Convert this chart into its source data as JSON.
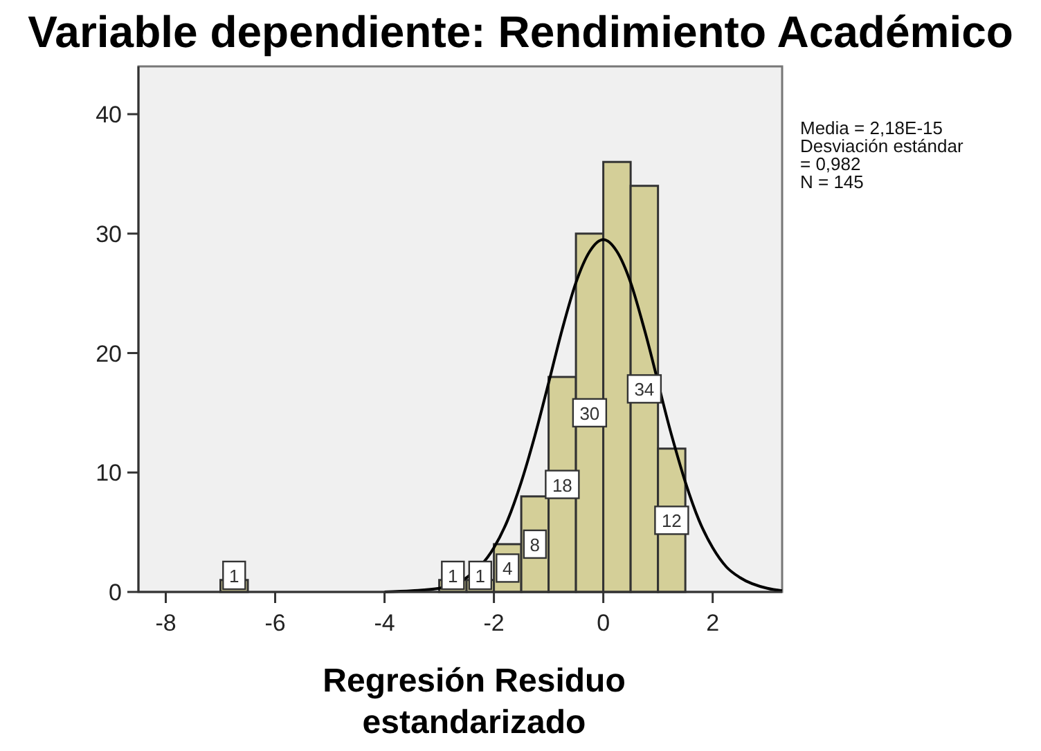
{
  "chart_data": {
    "type": "histogram",
    "title": "Variable dependiente: Rendimiento Académico",
    "xlabel": "Regresión Residuo estandarizado",
    "annotations": [
      "Media = 2,18E-15",
      "Desviación estándar = 0,982",
      "N = 145"
    ],
    "xlim": [
      -8.5,
      3.27
    ],
    "ylim": [
      0,
      44
    ],
    "xticks": [
      -8,
      -6,
      -4,
      -2,
      0,
      2
    ],
    "yticks": [
      0,
      10,
      20,
      30,
      40
    ],
    "grid": false,
    "series": [
      {
        "type": "histogram",
        "color": "#d4cf98",
        "bins": [
          -7,
          -6.5,
          -6,
          -5.5,
          -5,
          -4.5,
          -4,
          -3.5,
          -3,
          -2.5,
          -2,
          -1.5,
          -1,
          -0.5,
          0,
          0.5,
          1,
          1.5
        ],
        "values": [
          1,
          0,
          0,
          0,
          0,
          0,
          0,
          0,
          1,
          1,
          4,
          8,
          18,
          30,
          36,
          34,
          12
        ],
        "value_labels": [
          "1",
          null,
          null,
          null,
          null,
          null,
          null,
          null,
          "1",
          "1",
          "4",
          "8",
          "18",
          "30",
          null,
          "34",
          "12"
        ]
      },
      {
        "type": "line",
        "color": "#000000",
        "marker": "none",
        "x": [
          -4,
          -3.5,
          -3,
          -2.5,
          -2,
          -1.75,
          -1.5,
          -1.25,
          -1,
          -0.75,
          -0.5,
          -0.25,
          0,
          0.25,
          0.5,
          0.75,
          1.25,
          1.5,
          1.75,
          2,
          2.25,
          2.5,
          3,
          3.27
        ],
        "values": [
          0,
          0.1,
          0.3,
          1.2,
          3.7,
          6,
          9.2,
          13.1,
          17.5,
          22,
          25.9,
          28.5,
          29.5,
          28.5,
          25.9,
          22,
          13.1,
          9.2,
          6,
          3.7,
          2.1,
          1.2,
          0.3,
          0.1
        ]
      }
    ]
  }
}
